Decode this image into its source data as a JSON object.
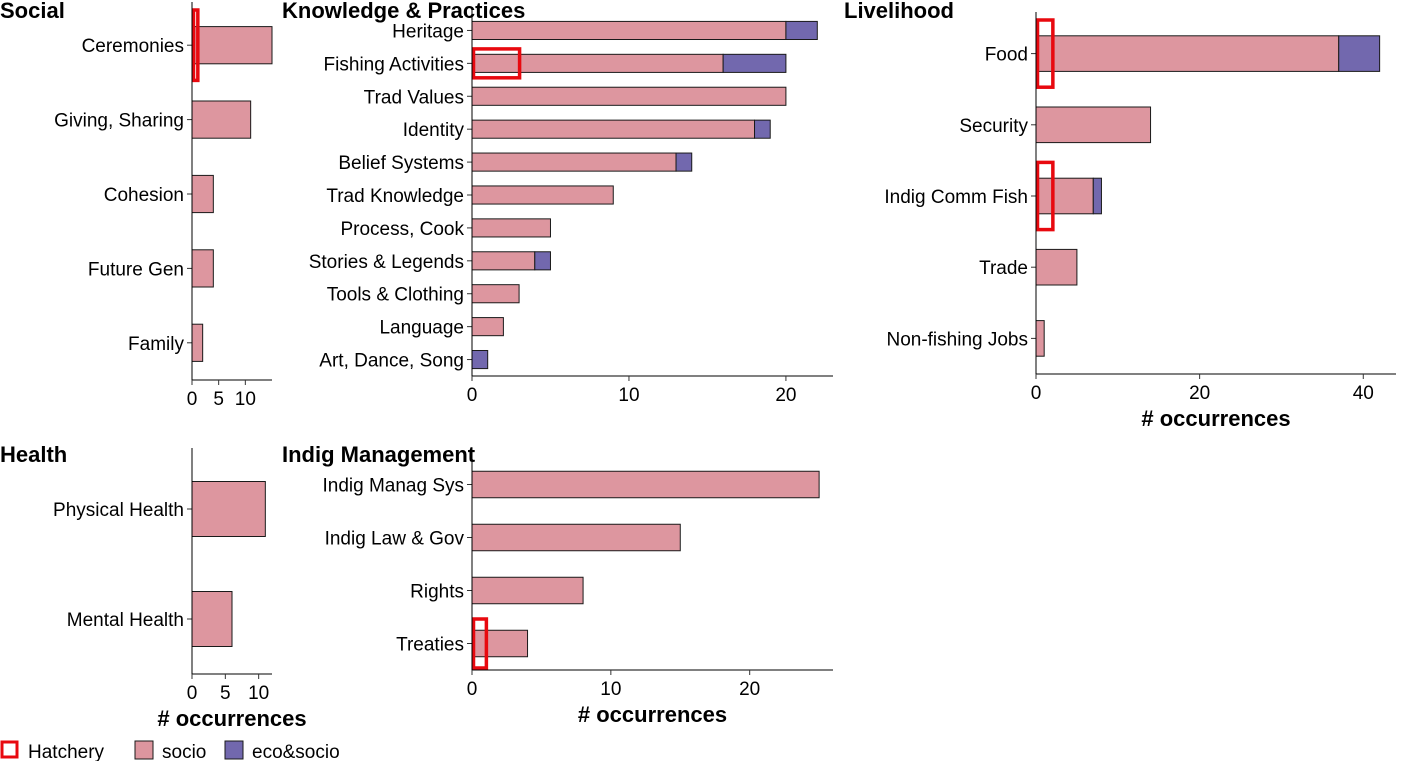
{
  "colors": {
    "socio": "#dd969f",
    "eco_socio": "#7268ae",
    "hatchery": "#e8090f",
    "outline": "#1a1a1a"
  },
  "legend": [
    {
      "key": "hatchery",
      "label": "Hatchery"
    },
    {
      "key": "socio",
      "label": "socio"
    },
    {
      "key": "eco_socio",
      "label": "eco&socio"
    }
  ],
  "chart_data": [
    {
      "type": "bar",
      "orientation": "horizontal",
      "stacked": true,
      "title": "Social",
      "xlabel": "",
      "xlim": [
        0,
        15
      ],
      "xticks": [
        0,
        5,
        10
      ],
      "categories": [
        "Ceremonies",
        "Giving, Sharing",
        "Cohesion",
        "Future Gen",
        "Family"
      ],
      "series": [
        {
          "name": "socio",
          "values": [
            15,
            11,
            4,
            4,
            2
          ]
        },
        {
          "name": "eco&socio",
          "values": [
            0,
            0,
            0,
            0,
            0
          ]
        }
      ],
      "hatchery": [
        1,
        0,
        0,
        0,
        0
      ]
    },
    {
      "type": "bar",
      "orientation": "horizontal",
      "stacked": true,
      "title": "Knowledge & Practices",
      "xlabel": "",
      "xlim": [
        0,
        23
      ],
      "xticks": [
        0,
        10,
        20
      ],
      "categories": [
        "Heritage",
        "Fishing Activities",
        "Trad Values",
        "Identity",
        "Belief Systems",
        "Trad Knowledge",
        "Process, Cook",
        "Stories & Legends",
        "Tools & Clothing",
        "Language",
        "Art, Dance, Song"
      ],
      "series": [
        {
          "name": "socio",
          "values": [
            20,
            16,
            20,
            18,
            13,
            9,
            5,
            4,
            3,
            2,
            0
          ]
        },
        {
          "name": "eco&socio",
          "values": [
            2,
            4,
            0,
            1,
            1,
            0,
            0,
            1,
            0,
            0,
            1
          ]
        }
      ],
      "hatchery": [
        0,
        3,
        0,
        0,
        0,
        0,
        0,
        0,
        0,
        0,
        0
      ]
    },
    {
      "type": "bar",
      "orientation": "horizontal",
      "stacked": true,
      "title": "Livelihood",
      "xlabel": "# occurrences",
      "xlim": [
        0,
        44
      ],
      "xticks": [
        0,
        20,
        40
      ],
      "categories": [
        "Food",
        "Security",
        "Indig Comm Fish",
        "Trade",
        "Non-fishing Jobs"
      ],
      "series": [
        {
          "name": "socio",
          "values": [
            37,
            14,
            7,
            5,
            1
          ]
        },
        {
          "name": "eco&socio",
          "values": [
            5,
            0,
            1,
            0,
            0
          ]
        }
      ],
      "hatchery": [
        2,
        0,
        2,
        0,
        0
      ]
    },
    {
      "type": "bar",
      "orientation": "horizontal",
      "stacked": true,
      "title": "Health",
      "xlabel": "# occurrences",
      "xlim": [
        0,
        12
      ],
      "xticks": [
        0,
        5,
        10
      ],
      "categories": [
        "Physical Health",
        "Mental Health"
      ],
      "series": [
        {
          "name": "socio",
          "values": [
            11,
            6
          ]
        },
        {
          "name": "eco&socio",
          "values": [
            0,
            0
          ]
        }
      ],
      "hatchery": [
        0,
        0
      ]
    },
    {
      "type": "bar",
      "orientation": "horizontal",
      "stacked": true,
      "title": "Indig Management",
      "xlabel": "# occurrences",
      "xlim": [
        0,
        26
      ],
      "xticks": [
        0,
        10,
        20
      ],
      "categories": [
        "Indig Manag Sys",
        "Indig Law & Gov",
        "Rights",
        "Treaties"
      ],
      "series": [
        {
          "name": "socio",
          "values": [
            25,
            15,
            8,
            4
          ]
        },
        {
          "name": "eco&socio",
          "values": [
            0,
            0,
            0,
            0
          ]
        }
      ],
      "hatchery": [
        0,
        0,
        0,
        1
      ]
    }
  ]
}
